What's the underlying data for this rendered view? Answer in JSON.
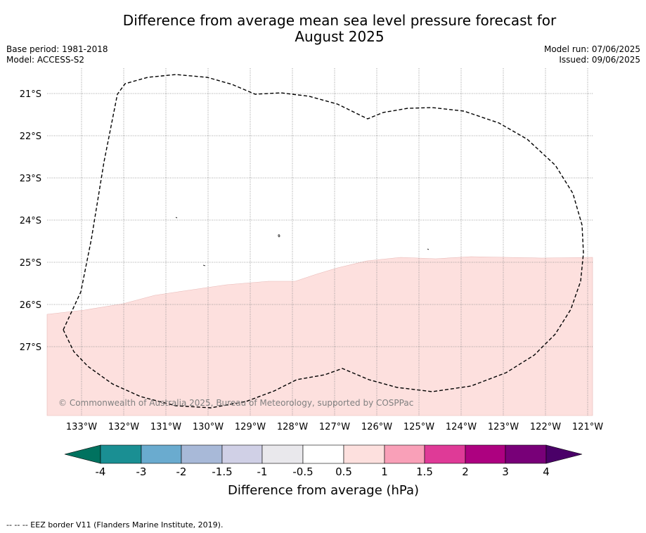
{
  "title": {
    "line1": "Difference from average mean sea level pressure forecast for",
    "line2": "August 2025"
  },
  "metadata": {
    "base_period": "Base period: 1981-2018",
    "model": "Model: ACCESS-S2",
    "model_run": "Model run: 07/06/2025",
    "issued": "Issued: 09/06/2025"
  },
  "map": {
    "latitude_labels": [
      "21°S",
      "22°S",
      "23°S",
      "24°S",
      "25°S",
      "26°S",
      "27°S"
    ],
    "longitude_labels": [
      "133°W",
      "132°W",
      "131°W",
      "130°W",
      "129°W",
      "128°W",
      "127°W",
      "126°W",
      "125°W",
      "124°W",
      "123°W",
      "122°W",
      "121°W"
    ],
    "copyright": "© Commonwealth of Australia 2025, Bureau of Meteorology, supported by COSPPac",
    "fill_color": "#fde0de",
    "colors": {
      "background": "#ffffff",
      "positive_anomaly": "#fde0de"
    }
  },
  "colorbar": {
    "label": "Difference from average (hPa)",
    "ticks": [
      "-4",
      "-3",
      "-2",
      "-1.5",
      "-1",
      "-0.5",
      "0.5",
      "1",
      "1.5",
      "2",
      "3",
      "4"
    ],
    "bins": [
      {
        "color": "#1a8f93"
      },
      {
        "color": "#6aabcf"
      },
      {
        "color": "#a8b9d8"
      },
      {
        "color": "#d0d0e6"
      },
      {
        "color": "#e9e8ec"
      },
      {
        "color": "#ffffff"
      },
      {
        "color": "#fde0de"
      },
      {
        "color": "#f9a0b8"
      },
      {
        "color": "#df3a97"
      },
      {
        "color": "#ad0180"
      },
      {
        "color": "#780078"
      }
    ],
    "under_color": "#00725f",
    "over_color": "#4a0068"
  },
  "footnote": "--  --  -- EEZ border V11 (Flanders Marine Institute, 2019)."
}
